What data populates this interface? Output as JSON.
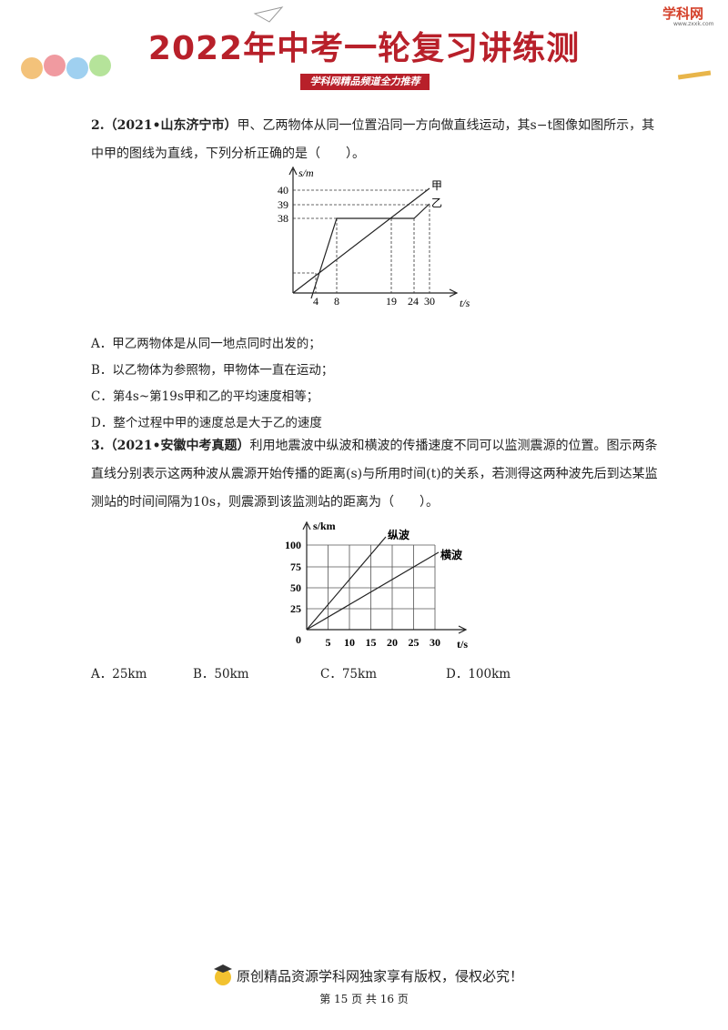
{
  "header": {
    "title": "2022年中考一轮复习讲练测",
    "subtitle": "学科网精品频道全力推荐",
    "logo": "学科网",
    "logo_url": "www.zxxk.com"
  },
  "questions": [
    {
      "number": "2.",
      "source": "（2021•山东济宁市）",
      "stem": "甲、乙两物体从同一位置沿同一方向做直线运动，其s−t图像如图所示，其中甲的图线为直线，下列分析正确的是（　　）。",
      "figure": {
        "y_label": "s/m",
        "x_label": "t/s",
        "yticks": [
          40,
          39,
          38
        ],
        "xticks": [
          4,
          8,
          19,
          24,
          30
        ],
        "line_labels": [
          "甲",
          "乙"
        ]
      },
      "options": [
        "A．甲乙两物体是从同一地点同时出发的；",
        "B．以乙物体为参照物，甲物体一直在运动；",
        "C．第4s~第19s甲和乙的平均速度相等；",
        "D．整个过程中甲的速度总是大于乙的速度"
      ]
    },
    {
      "number": "3.",
      "source": "（2021•安徽中考真题）",
      "stem": "利用地震波中纵波和横波的传播速度不同可以监测震源的位置。图示两条直线分别表示这两种波从震源开始传播的距离(s)与所用时间(t)的关系，若测得这两种波先后到达某监测站的时间间隔为10s，则震源到该监测站的距离为（　　）。",
      "figure": {
        "y_label": "s/km",
        "x_label": "t/s",
        "yticks": [
          0,
          25,
          50,
          75,
          100
        ],
        "xticks": [
          5,
          10,
          15,
          20,
          25,
          30
        ],
        "line_labels": [
          "纵波",
          "横波"
        ]
      },
      "options": [
        "A．25km",
        "B．50km",
        "C．75km",
        "D．100km"
      ]
    }
  ],
  "footer": {
    "notice": "原创精品资源学科网独家享有版权，侵权必究！",
    "page": "第 15 页 共 16 页"
  }
}
